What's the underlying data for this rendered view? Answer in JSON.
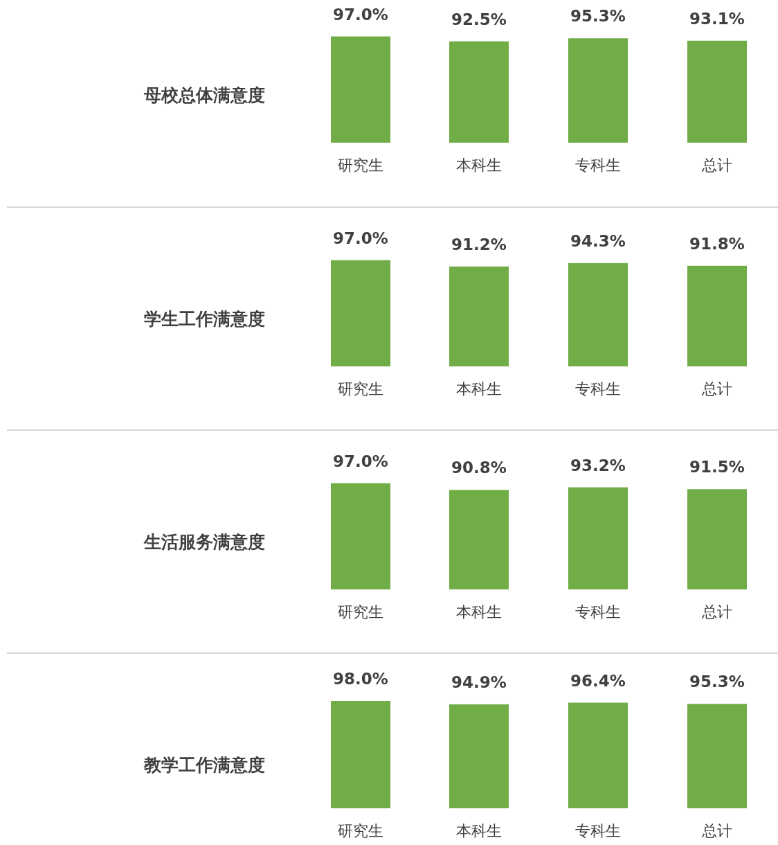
{
  "chart_data": [
    {
      "type": "bar",
      "title": "母校总体满意度",
      "categories": [
        "研究生",
        "本科生",
        "专科生",
        "总计"
      ],
      "values": [
        97.0,
        92.5,
        95.3,
        93.1
      ],
      "value_labels": [
        "97.0%",
        "92.5%",
        "95.3%",
        "93.1%"
      ],
      "color": "#70ad47"
    },
    {
      "type": "bar",
      "title": "学生工作满意度",
      "categories": [
        "研究生",
        "本科生",
        "专科生",
        "总计"
      ],
      "values": [
        97.0,
        91.2,
        94.3,
        91.8
      ],
      "value_labels": [
        "97.0%",
        "91.2%",
        "94.3%",
        "91.8%"
      ],
      "color": "#70ad47"
    },
    {
      "type": "bar",
      "title": "生活服务满意度",
      "categories": [
        "研究生",
        "本科生",
        "专科生",
        "总计"
      ],
      "values": [
        97.0,
        90.8,
        93.2,
        91.5
      ],
      "value_labels": [
        "97.0%",
        "90.8%",
        "93.2%",
        "91.5%"
      ],
      "color": "#70ad47"
    },
    {
      "type": "bar",
      "title": "教学工作满意度",
      "categories": [
        "研究生",
        "本科生",
        "专科生",
        "总计"
      ],
      "values": [
        98.0,
        94.9,
        96.4,
        95.3
      ],
      "value_labels": [
        "98.0%",
        "94.9%",
        "96.4%",
        "95.3%"
      ],
      "color": "#70ad47"
    }
  ]
}
